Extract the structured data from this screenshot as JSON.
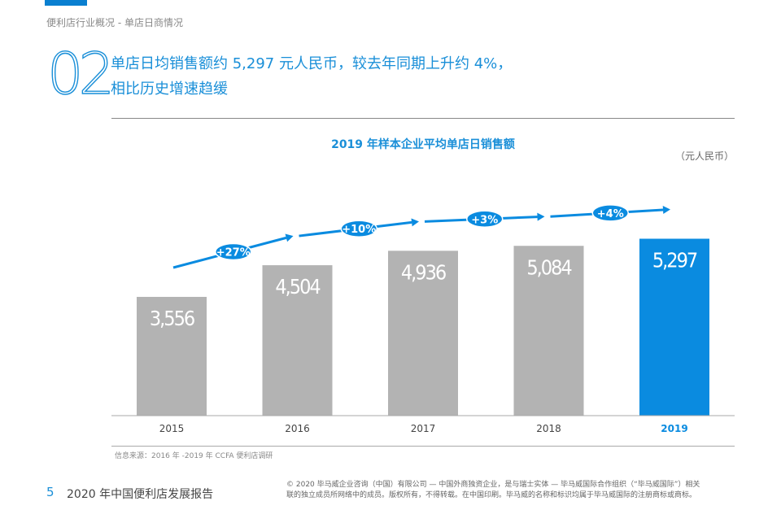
{
  "header": {
    "breadcrumb": "便利店行业概况 - 单店日商情况",
    "section_number": "02",
    "headline_line1": "单店日均销售额约 5,297 元人民币，较去年同期上升约 4%，",
    "headline_line2": "相比历史增速趋缓"
  },
  "chart_data": {
    "type": "bar",
    "title": "2019 年样本企业平均单店日销售额",
    "unit": "（元人民币）",
    "categories": [
      "2015",
      "2016",
      "2017",
      "2018",
      "2019"
    ],
    "values": [
      3556,
      4504,
      4936,
      5084,
      5297
    ],
    "value_labels": [
      "3,556",
      "4,504",
      "4,936",
      "5,084",
      "5,297"
    ],
    "growth_labels": [
      "+27%",
      "+10%",
      "+3%",
      "+4%"
    ],
    "bar_color": "#b3b3b3",
    "highlight_color": "#0a8be0",
    "highlight_index": 4,
    "ylim": [
      0,
      5600
    ],
    "grid": false
  },
  "source": "信息来源：2016 年 -2019 年 CCFA 便利店调研",
  "footer": {
    "page_number": "5",
    "report_title": "2020 年中国便利店发展报告",
    "copyright_line1": "© 2020 毕马威企业咨询（中国）有限公司 — 中国外商独资企业，是与瑞士实体 — 毕马威国际合作组织（“毕马威国际”）相关",
    "copyright_line2": "联的独立成员所网络中的成员。版权所有，不得转载。在中国印刷。毕马威的名称和标识均属于毕马威国际的注册商标或商标。"
  }
}
